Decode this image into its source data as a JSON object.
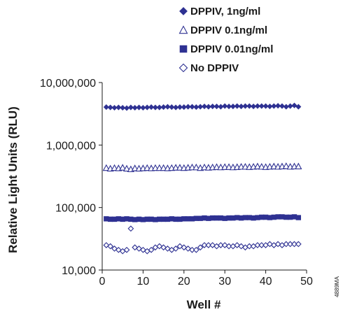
{
  "colors": {
    "series": "#2e3192",
    "axis": "#1a1a1a"
  },
  "chart_data": {
    "type": "scatter",
    "xlabel": "Well #",
    "ylabel": "Relative Light Units (RLU)",
    "xlim": [
      0,
      50
    ],
    "ylim": [
      10000,
      10000000
    ],
    "y_scale": "log",
    "x_ticks": [
      0,
      10,
      20,
      30,
      40,
      50
    ],
    "x_tick_labels": [
      "0",
      "10",
      "20",
      "30",
      "40",
      "50"
    ],
    "y_ticks": [
      10000,
      100000,
      1000000,
      10000000
    ],
    "y_tick_labels": [
      "10,000",
      "100,000",
      "1,000,000",
      "10,000,000"
    ],
    "grid": false,
    "legend_position": "top-right",
    "code": "4889MA",
    "series": [
      {
        "name": "DPPIV, 1ng/ml",
        "marker": "filled-diamond",
        "x": [
          1,
          2,
          3,
          4,
          5,
          6,
          7,
          8,
          9,
          10,
          11,
          12,
          13,
          14,
          15,
          16,
          17,
          18,
          19,
          20,
          21,
          22,
          23,
          24,
          25,
          26,
          27,
          28,
          29,
          30,
          31,
          32,
          33,
          34,
          35,
          36,
          37,
          38,
          39,
          40,
          41,
          42,
          43,
          44,
          45,
          46,
          47,
          48
        ],
        "values": [
          4050000,
          4000000,
          3950000,
          4000000,
          3950000,
          3900000,
          4000000,
          3950000,
          4000000,
          3950000,
          4000000,
          4050000,
          4000000,
          4000000,
          4050000,
          4100000,
          4050000,
          4000000,
          4050000,
          4050000,
          4100000,
          4100000,
          4050000,
          4100000,
          4150000,
          4100000,
          4150000,
          4150000,
          4100000,
          4200000,
          4150000,
          4150000,
          4200000,
          4150000,
          4200000,
          4200000,
          4150000,
          4200000,
          4200000,
          4200000,
          4150000,
          4200000,
          4250000,
          4200000,
          4100000,
          4200000,
          4300000,
          4100000
        ]
      },
      {
        "name": "DPPIV 0.1ng/ml",
        "marker": "open-triangle",
        "x": [
          1,
          2,
          3,
          4,
          5,
          6,
          7,
          8,
          9,
          10,
          11,
          12,
          13,
          14,
          15,
          16,
          17,
          18,
          19,
          20,
          21,
          22,
          23,
          24,
          25,
          26,
          27,
          28,
          29,
          30,
          31,
          32,
          33,
          34,
          35,
          36,
          37,
          38,
          39,
          40,
          41,
          42,
          43,
          44,
          45,
          46,
          47,
          48
        ],
        "values": [
          430000,
          420000,
          430000,
          425000,
          435000,
          420000,
          410000,
          425000,
          420000,
          425000,
          430000,
          425000,
          430000,
          430000,
          430000,
          425000,
          430000,
          435000,
          435000,
          430000,
          435000,
          440000,
          440000,
          430000,
          440000,
          435000,
          440000,
          445000,
          440000,
          445000,
          445000,
          440000,
          445000,
          450000,
          450000,
          445000,
          450000,
          455000,
          450000,
          445000,
          450000,
          455000,
          450000,
          455000,
          460000,
          450000,
          455000,
          455000
        ]
      },
      {
        "name": "DPPIV 0.01ng/ml",
        "marker": "filled-square",
        "x": [
          1,
          2,
          3,
          4,
          5,
          6,
          7,
          8,
          9,
          10,
          11,
          12,
          13,
          14,
          15,
          16,
          17,
          18,
          19,
          20,
          21,
          22,
          23,
          24,
          25,
          26,
          27,
          28,
          29,
          30,
          31,
          32,
          33,
          34,
          35,
          36,
          37,
          38,
          39,
          40,
          41,
          42,
          43,
          44,
          45,
          46,
          47,
          48
        ],
        "values": [
          66000,
          65000,
          65000,
          66000,
          65000,
          66000,
          65000,
          64000,
          65000,
          64000,
          65000,
          65000,
          64000,
          65000,
          65000,
          65000,
          66000,
          65000,
          65000,
          66000,
          66000,
          66000,
          67000,
          67000,
          68000,
          67000,
          68000,
          68000,
          68000,
          67000,
          68000,
          68000,
          69000,
          68000,
          69000,
          69000,
          68000,
          69000,
          70000,
          70000,
          69000,
          70000,
          71000,
          71000,
          70000,
          70000,
          71000,
          69000
        ]
      },
      {
        "name": "No DPPIV",
        "marker": "open-diamond",
        "x": [
          1,
          2,
          3,
          4,
          5,
          6,
          7,
          8,
          9,
          10,
          11,
          12,
          13,
          14,
          15,
          16,
          17,
          18,
          19,
          20,
          21,
          22,
          23,
          24,
          25,
          26,
          27,
          28,
          29,
          30,
          31,
          32,
          33,
          34,
          35,
          36,
          37,
          38,
          39,
          40,
          41,
          42,
          43,
          44,
          45,
          46,
          47,
          48
        ],
        "values": [
          25000,
          24000,
          22000,
          21000,
          20000,
          21000,
          46000,
          23000,
          22000,
          21000,
          20000,
          21000,
          23000,
          24000,
          23000,
          22000,
          21000,
          22000,
          24000,
          23000,
          22000,
          21000,
          21000,
          23000,
          25000,
          25000,
          25000,
          24000,
          25000,
          25000,
          24000,
          24000,
          25000,
          24000,
          23000,
          24000,
          24000,
          25000,
          25000,
          25000,
          26000,
          25000,
          26000,
          25000,
          26000,
          26000,
          26000,
          26000
        ]
      }
    ]
  }
}
